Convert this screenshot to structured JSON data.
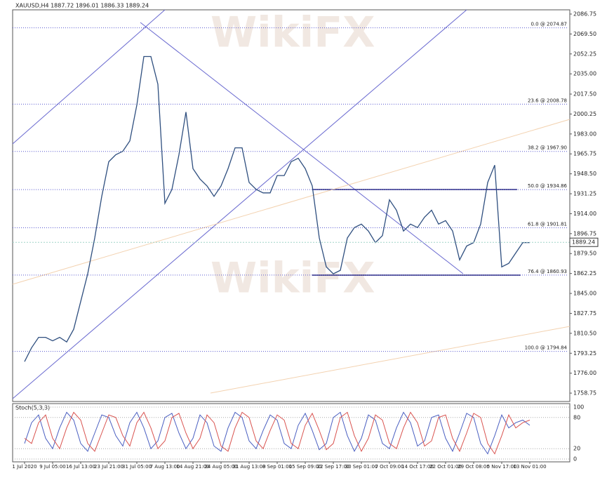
{
  "chart_data": [
    {
      "type": "line",
      "title": "XAUUSD,H4  1887.72 1896.01 1886.33 1889.24",
      "watermark": "WikiFX",
      "categories": [
        "1 Jul 2020",
        null,
        null,
        null,
        "9 Jul 05:00",
        null,
        null,
        null,
        "16 Jul 13:00",
        null,
        null,
        null,
        "23 Jul 21:00",
        null,
        null,
        null,
        "31 Jul 05:00",
        null,
        null,
        null,
        "7 Aug 13:00",
        null,
        null,
        null,
        "14 Aug 21:00",
        null,
        null,
        null,
        "24 Aug 05:00",
        null,
        null,
        null,
        "31 Aug 13:00",
        null,
        null,
        null,
        "8 Sep 01:00",
        null,
        null,
        null,
        "15 Sep 09:00",
        null,
        null,
        null,
        "22 Sep 17:00",
        null,
        null,
        null,
        "30 Sep 01:00",
        null,
        null,
        null,
        "7 Oct 09:00",
        null,
        null,
        null,
        "14 Oct 17:00",
        null,
        null,
        null,
        "22 Oct 01:00",
        null,
        null,
        null,
        "29 Oct 08:00",
        null,
        null,
        null,
        "5 Nov 17:00",
        null,
        null,
        null,
        "13 Nov 01:00"
      ],
      "series": [
        {
          "color": "#2f4f7f",
          "values": [
            1786,
            1798,
            1807,
            1807,
            1804,
            1807,
            1803,
            1814,
            1838,
            1862,
            1893,
            1929,
            1959,
            1965,
            1968,
            1977,
            2008,
            2050,
            2050,
            2026,
            1923,
            1935,
            1965,
            2002,
            1953,
            1944,
            1938,
            1929,
            1938,
            1953,
            1971,
            1971,
            1941,
            1935,
            1932,
            1932,
            1947,
            1947,
            1959,
            1962,
            1953,
            1938,
            1893,
            1868,
            1862,
            1865,
            1893,
            1902,
            1905,
            1899,
            1889,
            1895,
            1926,
            1917,
            1899,
            1905,
            1902,
            1911,
            1917,
            1905,
            1908,
            1899,
            1874,
            1886,
            1889,
            1905,
            1941,
            1956,
            1868,
            1871,
            1880,
            1889,
            1889
          ]
        }
      ],
      "ylim": [
        1751.5,
        2090.4
      ],
      "yticks": [
        2086.75,
        {
          "value": 2069.5,
          "label": "2069.50"
        },
        2052.25,
        {
          "value": 2035,
          "label": "2035.00"
        },
        {
          "value": 2017.5,
          "label": "2017.50"
        },
        2000.25,
        {
          "value": 1983,
          "label": "1983.00"
        },
        1965.75,
        {
          "value": 1948.5,
          "label": "1948.50"
        },
        1931.25,
        {
          "value": 1914,
          "label": "1914.00"
        },
        1896.75,
        {
          "value": 1879.5,
          "label": "1879.50"
        },
        1862.25,
        {
          "value": 1845,
          "label": "1845.00"
        },
        1827.75,
        {
          "value": 1810.5,
          "label": "1810.50"
        },
        1793.25,
        {
          "value": 1776,
          "label": "1776.00"
        },
        1758.75
      ],
      "levels": [
        {
          "label": "0.0 @ 2074.87",
          "value": 2074.87
        },
        {
          "label": "23.6 @ 2008.78",
          "value": 2008.78
        },
        {
          "label": "38.2 @ 1967.90",
          "value": 1967.9
        },
        {
          "label": "50.0 @ 1934.86",
          "value": 1934.86
        },
        {
          "label": "61.8 @ 1901.81",
          "value": 1901.81
        },
        {
          "label": "76.4 @ 1860.93",
          "value": 1860.93
        },
        {
          "label": "100.0 @ 1794.84",
          "value": 1794.84
        }
      ],
      "last_price": {
        "value": 1889.24,
        "label": "1889.24"
      }
    },
    {
      "type": "oscillator",
      "title": "Stoch(5,3,3)",
      "series": [
        {
          "color": "#4a5fc1",
          "values": [
            30,
            70,
            85,
            40,
            20,
            60,
            90,
            75,
            30,
            15,
            50,
            85,
            80,
            45,
            25,
            70,
            90,
            60,
            20,
            35,
            80,
            88,
            50,
            20,
            40,
            85,
            70,
            25,
            15,
            60,
            90,
            80,
            35,
            20,
            55,
            85,
            75,
            30,
            20,
            65,
            88,
            55,
            18,
            30,
            80,
            90,
            45,
            15,
            40,
            85,
            75,
            30,
            20,
            60,
            90,
            70,
            25,
            35,
            80,
            85,
            40,
            15,
            50,
            88,
            80,
            30,
            10,
            45,
            85,
            60,
            70,
            75,
            65
          ]
        },
        {
          "color": "#d9534f",
          "values": [
            40,
            30,
            70,
            85,
            40,
            20,
            60,
            90,
            75,
            30,
            15,
            50,
            85,
            80,
            45,
            25,
            70,
            90,
            60,
            20,
            35,
            80,
            88,
            50,
            20,
            40,
            85,
            70,
            25,
            15,
            60,
            90,
            80,
            35,
            20,
            55,
            85,
            75,
            30,
            20,
            65,
            88,
            55,
            18,
            30,
            80,
            90,
            45,
            15,
            40,
            85,
            75,
            30,
            20,
            60,
            90,
            70,
            25,
            35,
            80,
            85,
            40,
            15,
            50,
            88,
            80,
            30,
            10,
            45,
            85,
            60,
            70,
            75
          ]
        }
      ],
      "ylim": [
        0,
        100
      ],
      "yticks": [
        100,
        80,
        20,
        0
      ]
    }
  ]
}
